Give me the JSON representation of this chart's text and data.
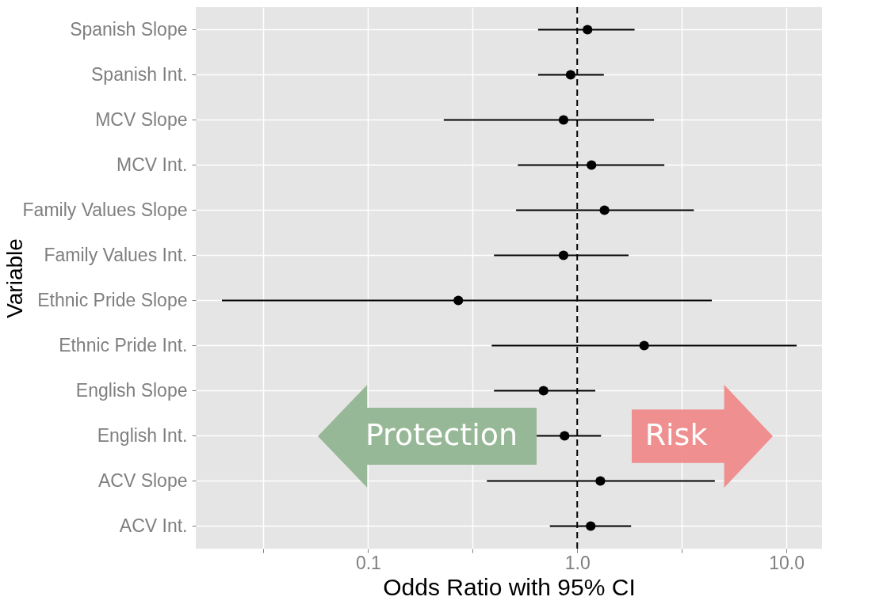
{
  "chart_data": {
    "type": "scatter",
    "orientation": "horizontal",
    "xlabel": "Odds Ratio with 95% CI",
    "ylabel": "Variable",
    "categories": [
      "Spanish Slope",
      "Spanish Int.",
      "MCV Slope",
      "MCV Int.",
      "Family Values Slope",
      "Family Values Int.",
      "Ethnic Pride Slope",
      "Ethnic Pride Int.",
      "English Slope",
      "English Int.",
      "ACV Slope",
      "ACV Int."
    ],
    "values": [
      1.12,
      0.93,
      0.86,
      1.17,
      1.35,
      0.86,
      0.27,
      2.09,
      0.69,
      0.87,
      1.29,
      1.16
    ],
    "errors": [
      [
        0.65,
        1.88
      ],
      [
        0.65,
        1.34
      ],
      [
        0.23,
        2.33
      ],
      [
        0.52,
        2.61
      ],
      [
        0.51,
        3.61
      ],
      [
        0.4,
        1.76
      ],
      [
        0.02,
        4.4
      ],
      [
        0.39,
        11.2
      ],
      [
        0.4,
        1.22
      ],
      [
        0.64,
        1.3
      ],
      [
        0.37,
        4.55
      ],
      [
        0.74,
        1.81
      ]
    ],
    "color": "#000000",
    "marker": "circle",
    "log": "x",
    "grid": true,
    "xlim": [
      0.015,
      14.8
    ],
    "xticks": [
      {
        "value": 0.0316,
        "label": null
      },
      0.1,
      {
        "value": 0.316,
        "label": null
      },
      {
        "value": 1,
        "label": "1.0"
      },
      {
        "value": 3.16,
        "label": null
      },
      {
        "value": 10,
        "label": "10.0"
      }
    ],
    "ref_lines": [
      {
        "axis": "x",
        "value": 1,
        "line_style": "dashed",
        "color": "#000000"
      }
    ],
    "annotations": [
      "Protection",
      "Risk"
    ]
  }
}
